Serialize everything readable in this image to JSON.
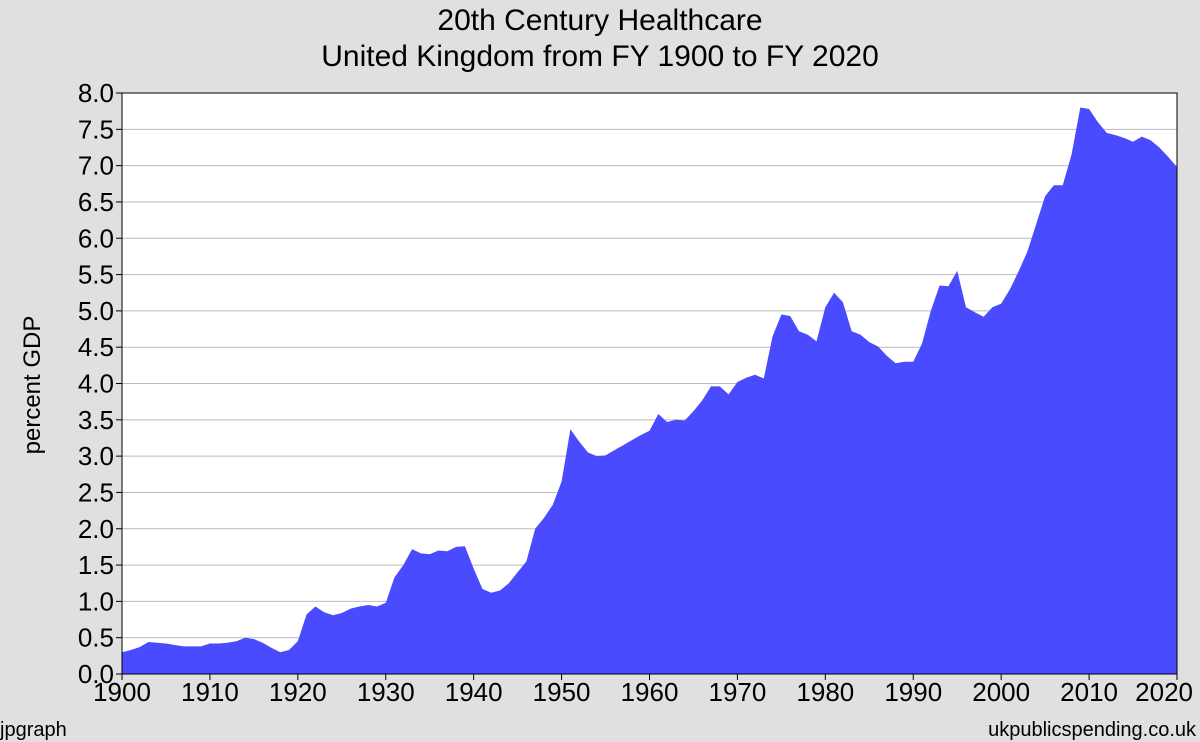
{
  "title_line1": "20th Century Healthcare",
  "title_line2": "United Kingdom from FY 1900 to FY 2020",
  "footer_left": "jpgraph",
  "footer_right": "ukpublicspending.co.uk",
  "colors": {
    "background": "#e0e0e0",
    "plot_background": "#ffffff",
    "area_fill": "#4a4aff",
    "grid": "#bbbbbb"
  },
  "chart_data": {
    "type": "area",
    "title": "20th Century Healthcare",
    "subtitle": "United Kingdom from FY 1900 to FY 2020",
    "xlabel": "",
    "ylabel": "percent GDP",
    "xlim": [
      1900,
      2020
    ],
    "ylim": [
      0,
      8
    ],
    "grid": "horizontal",
    "x_ticks": [
      "1900",
      "1910",
      "1920",
      "1930",
      "1940",
      "1950",
      "1960",
      "1970",
      "1980",
      "1990",
      "2000",
      "2010",
      "2020"
    ],
    "y_ticks": [
      "0.0",
      "0.5",
      "1.0",
      "1.5",
      "2.0",
      "2.5",
      "3.0",
      "3.5",
      "4.0",
      "4.5",
      "5.0",
      "5.5",
      "6.0",
      "6.5",
      "7.0",
      "7.5",
      "8.0"
    ],
    "series": [
      {
        "values": [
          [
            1900,
            0.3
          ],
          [
            1901,
            0.33
          ],
          [
            1902,
            0.37
          ],
          [
            1903,
            0.44
          ],
          [
            1904,
            0.43
          ],
          [
            1905,
            0.42
          ],
          [
            1906,
            0.4
          ],
          [
            1907,
            0.38
          ],
          [
            1908,
            0.38
          ],
          [
            1909,
            0.38
          ],
          [
            1910,
            0.42
          ],
          [
            1911,
            0.42
          ],
          [
            1912,
            0.43
          ],
          [
            1913,
            0.45
          ],
          [
            1914,
            0.5
          ],
          [
            1915,
            0.48
          ],
          [
            1916,
            0.43
          ],
          [
            1917,
            0.36
          ],
          [
            1918,
            0.3
          ],
          [
            1919,
            0.33
          ],
          [
            1920,
            0.45
          ],
          [
            1921,
            0.82
          ],
          [
            1922,
            0.93
          ],
          [
            1923,
            0.85
          ],
          [
            1924,
            0.81
          ],
          [
            1925,
            0.84
          ],
          [
            1926,
            0.9
          ],
          [
            1927,
            0.93
          ],
          [
            1928,
            0.95
          ],
          [
            1929,
            0.93
          ],
          [
            1930,
            0.98
          ],
          [
            1931,
            1.33
          ],
          [
            1932,
            1.5
          ],
          [
            1933,
            1.72
          ],
          [
            1934,
            1.66
          ],
          [
            1935,
            1.65
          ],
          [
            1936,
            1.7
          ],
          [
            1937,
            1.69
          ],
          [
            1938,
            1.75
          ],
          [
            1939,
            1.76
          ],
          [
            1940,
            1.45
          ],
          [
            1941,
            1.17
          ],
          [
            1942,
            1.12
          ],
          [
            1943,
            1.15
          ],
          [
            1944,
            1.25
          ],
          [
            1945,
            1.4
          ],
          [
            1946,
            1.55
          ],
          [
            1947,
            2.0
          ],
          [
            1948,
            2.15
          ],
          [
            1949,
            2.33
          ],
          [
            1950,
            2.65
          ],
          [
            1951,
            3.37
          ],
          [
            1952,
            3.2
          ],
          [
            1953,
            3.05
          ],
          [
            1954,
            3.0
          ],
          [
            1955,
            3.01
          ],
          [
            1956,
            3.08
          ],
          [
            1957,
            3.15
          ],
          [
            1958,
            3.22
          ],
          [
            1959,
            3.29
          ],
          [
            1960,
            3.35
          ],
          [
            1961,
            3.58
          ],
          [
            1962,
            3.47
          ],
          [
            1963,
            3.5
          ],
          [
            1964,
            3.49
          ],
          [
            1965,
            3.62
          ],
          [
            1966,
            3.77
          ],
          [
            1967,
            3.96
          ],
          [
            1968,
            3.96
          ],
          [
            1969,
            3.85
          ],
          [
            1970,
            4.02
          ],
          [
            1971,
            4.08
          ],
          [
            1972,
            4.12
          ],
          [
            1973,
            4.07
          ],
          [
            1974,
            4.65
          ],
          [
            1975,
            4.95
          ],
          [
            1976,
            4.93
          ],
          [
            1977,
            4.72
          ],
          [
            1978,
            4.67
          ],
          [
            1979,
            4.58
          ],
          [
            1980,
            5.05
          ],
          [
            1981,
            5.25
          ],
          [
            1982,
            5.12
          ],
          [
            1983,
            4.72
          ],
          [
            1984,
            4.67
          ],
          [
            1985,
            4.57
          ],
          [
            1986,
            4.51
          ],
          [
            1987,
            4.38
          ],
          [
            1988,
            4.28
          ],
          [
            1989,
            4.3
          ],
          [
            1990,
            4.3
          ],
          [
            1991,
            4.55
          ],
          [
            1992,
            5.0
          ],
          [
            1993,
            5.35
          ],
          [
            1994,
            5.34
          ],
          [
            1995,
            5.55
          ],
          [
            1996,
            5.05
          ],
          [
            1997,
            4.98
          ],
          [
            1998,
            4.92
          ],
          [
            1999,
            5.05
          ],
          [
            2000,
            5.1
          ],
          [
            2001,
            5.3
          ],
          [
            2002,
            5.55
          ],
          [
            2003,
            5.82
          ],
          [
            2004,
            6.2
          ],
          [
            2005,
            6.58
          ],
          [
            2006,
            6.73
          ],
          [
            2007,
            6.73
          ],
          [
            2008,
            7.15
          ],
          [
            2009,
            7.8
          ],
          [
            2010,
            7.78
          ],
          [
            2011,
            7.6
          ],
          [
            2012,
            7.45
          ],
          [
            2013,
            7.42
          ],
          [
            2014,
            7.38
          ],
          [
            2015,
            7.33
          ],
          [
            2016,
            7.4
          ],
          [
            2017,
            7.35
          ],
          [
            2018,
            7.25
          ],
          [
            2019,
            7.12
          ],
          [
            2020,
            6.98
          ]
        ]
      }
    ]
  }
}
